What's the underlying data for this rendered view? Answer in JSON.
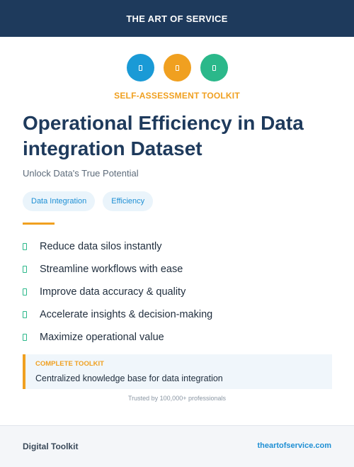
{
  "header": {
    "brand": "THE ART OF SERVICE"
  },
  "icons": [
    {
      "name": "blue-icon",
      "color": "#1a9ad6"
    },
    {
      "name": "orange-icon",
      "color": "#f0a020"
    },
    {
      "name": "green-icon",
      "color": "#2bb88a"
    }
  ],
  "eyebrow": "SELF-ASSESSMENT TOOLKIT",
  "title": "Operational Efficiency in Data integration Dataset",
  "subtitle": "Unlock Data's True Potential",
  "tags": [
    "Data Integration",
    "Efficiency"
  ],
  "features": [
    "Reduce data silos instantly",
    "Streamline workflows with ease",
    "Improve data accuracy & quality",
    "Accelerate insights & decision-making",
    "Maximize operational value"
  ],
  "callout": {
    "label": "COMPLETE TOOLKIT",
    "text": "Centralized knowledge base for data integration"
  },
  "trust": "Trusted by 100,000+ professionals",
  "footer": {
    "left": "Digital Toolkit",
    "right": "theartofservice.com"
  }
}
